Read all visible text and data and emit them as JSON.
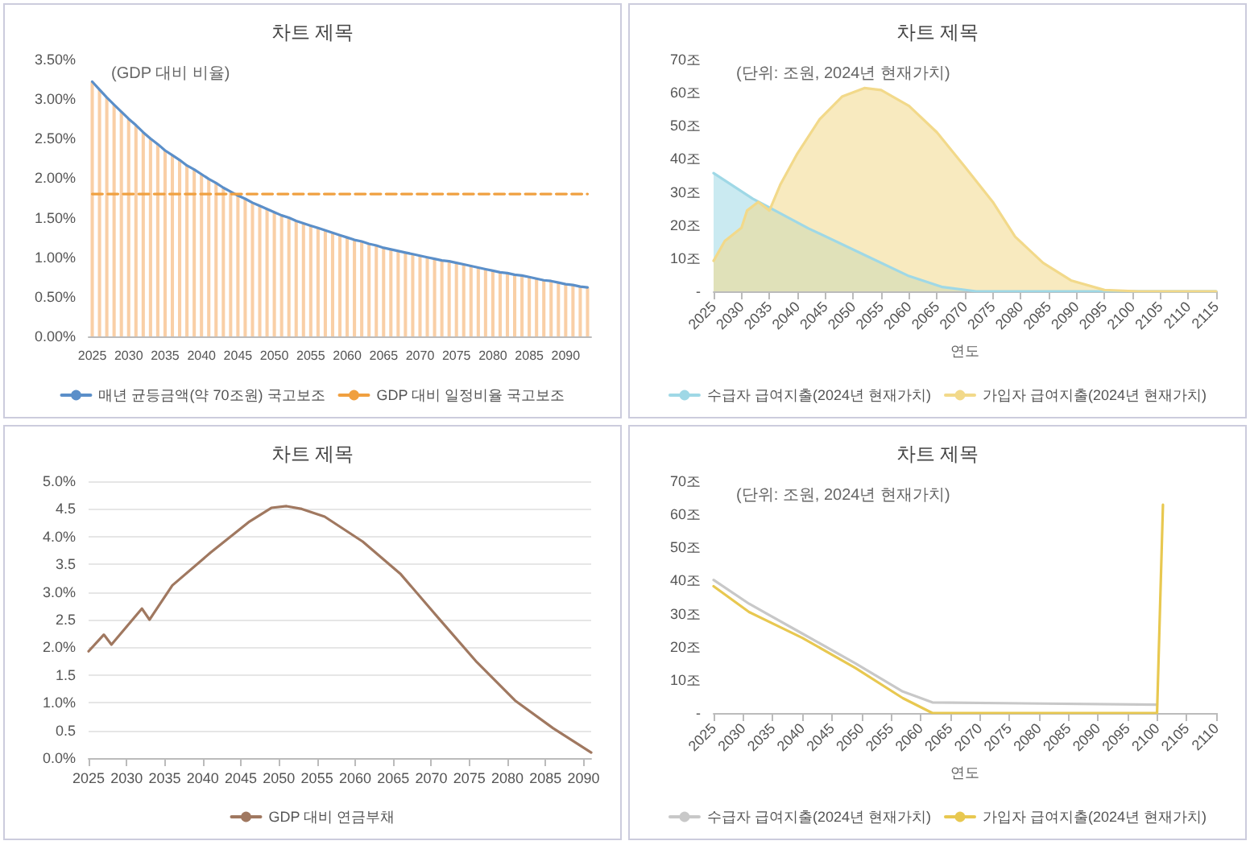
{
  "chart_data": [
    {
      "type": "bar",
      "title": "차트 제목",
      "annotations": [
        "(GDP 대비 비율)"
      ],
      "legend": "bottom",
      "categories": [
        "2025",
        null,
        null,
        null,
        null,
        "2030",
        null,
        null,
        null,
        null,
        "2035",
        null,
        null,
        null,
        null,
        "2040",
        null,
        null,
        null,
        null,
        "2045",
        null,
        null,
        null,
        null,
        "2050",
        null,
        null,
        null,
        null,
        "2055",
        null,
        null,
        null,
        null,
        "2060",
        null,
        null,
        null,
        null,
        "2065",
        null,
        null,
        null,
        null,
        "2070",
        null,
        null,
        null,
        null,
        "2075",
        null,
        null,
        null,
        null,
        "2080",
        null,
        null,
        null,
        null,
        "2085",
        null,
        null,
        null,
        null,
        "2090",
        null,
        null,
        null
      ],
      "ylim": [
        0,
        3.5
      ],
      "yticks": [
        {
          "value": 0,
          "label": "0.00%"
        },
        {
          "value": 0.5,
          "label": "0.50%"
        },
        {
          "value": 1,
          "label": "1.00%"
        },
        {
          "value": 1.5,
          "label": "1.50%"
        },
        {
          "value": 2,
          "label": "2.00%"
        },
        {
          "value": 2.5,
          "label": "2.50%"
        },
        {
          "value": 3,
          "label": "3.00%"
        },
        {
          "value": 3.5,
          "label": "3.50%"
        }
      ],
      "series": [
        {
          "color": "#f9cfa6",
          "values": [
            3.22,
            3.12,
            3.02,
            2.93,
            2.84,
            2.75,
            2.67,
            2.58,
            2.5,
            2.43,
            2.35,
            2.29,
            2.23,
            2.16,
            2.11,
            2.05,
            1.99,
            1.94,
            1.88,
            1.83,
            1.78,
            1.74,
            1.69,
            1.65,
            1.61,
            1.57,
            1.53,
            1.5,
            1.46,
            1.43,
            1.4,
            1.37,
            1.34,
            1.31,
            1.28,
            1.25,
            1.22,
            1.2,
            1.17,
            1.15,
            1.12,
            1.1,
            1.08,
            1.06,
            1.04,
            1.02,
            1.0,
            0.98,
            0.96,
            0.95,
            0.93,
            0.91,
            0.89,
            0.87,
            0.85,
            0.83,
            0.81,
            0.8,
            0.78,
            0.77,
            0.75,
            0.73,
            0.71,
            0.7,
            0.68,
            0.66,
            0.65,
            0.63,
            0.62
          ]
        },
        {
          "type": "line",
          "name": "매년 균등금액(약 70조원) 국고보조",
          "color": "#5b8fc9",
          "values": [
            3.22,
            3.12,
            3.02,
            2.93,
            2.84,
            2.75,
            2.67,
            2.58,
            2.5,
            2.43,
            2.35,
            2.29,
            2.23,
            2.16,
            2.11,
            2.05,
            1.99,
            1.94,
            1.88,
            1.83,
            1.78,
            1.74,
            1.69,
            1.65,
            1.61,
            1.57,
            1.53,
            1.5,
            1.46,
            1.43,
            1.4,
            1.37,
            1.34,
            1.31,
            1.28,
            1.25,
            1.22,
            1.2,
            1.17,
            1.15,
            1.12,
            1.1,
            1.08,
            1.06,
            1.04,
            1.02,
            1.0,
            0.98,
            0.96,
            0.95,
            0.93,
            0.91,
            0.89,
            0.87,
            0.85,
            0.83,
            0.81,
            0.8,
            0.78,
            0.77,
            0.75,
            0.73,
            0.71,
            0.7,
            0.68,
            0.66,
            0.65,
            0.63,
            0.62
          ]
        },
        {
          "type": "line",
          "name": "GDP 대비 일정비율 국고보조",
          "color": "#f0a040",
          "line_style": "dashed",
          "values": [
            1.8,
            1.8,
            1.8,
            1.8,
            1.8,
            1.8,
            1.8,
            1.8,
            1.8,
            1.8,
            1.8,
            1.8,
            1.8,
            1.8,
            1.8,
            1.8,
            1.8,
            1.8,
            1.8,
            1.8,
            1.8,
            1.8,
            1.8,
            1.8,
            1.8,
            1.8,
            1.8,
            1.8,
            1.8,
            1.8,
            1.8,
            1.8,
            1.8,
            1.8,
            1.8,
            1.8,
            1.8,
            1.8,
            1.8,
            1.8,
            1.8,
            1.8,
            1.8,
            1.8,
            1.8,
            1.8,
            1.8,
            1.8,
            1.8,
            1.8,
            1.8,
            1.8,
            1.8,
            1.8,
            1.8,
            1.8,
            1.8,
            1.8,
            1.8,
            1.8,
            1.8,
            1.8,
            1.8,
            1.8,
            1.8,
            1.8,
            1.8,
            1.8,
            1.8
          ]
        }
      ]
    },
    {
      "type": "area",
      "title": "차트 제목",
      "annotations": [
        "(단위: 조원, 2024년 현재가치)"
      ],
      "xlabel": "연도",
      "legend": "bottom",
      "xlim": [
        2025,
        2115
      ],
      "xticks": [
        2025,
        2030,
        2035,
        2040,
        2045,
        2050,
        2055,
        2060,
        2065,
        2070,
        2075,
        2080,
        2085,
        2090,
        2095,
        2100,
        2105,
        2110,
        2115
      ],
      "ylim": [
        0,
        70
      ],
      "yticks": [
        {
          "value": 0,
          "label": "-"
        },
        {
          "value": 10,
          "label": "10조"
        },
        {
          "value": 20,
          "label": "20조"
        },
        {
          "value": 30,
          "label": "30조"
        },
        {
          "value": 40,
          "label": "40조"
        },
        {
          "value": 50,
          "label": "50조"
        },
        {
          "value": 60,
          "label": "60조"
        },
        {
          "value": 70,
          "label": "70조"
        }
      ],
      "series": [
        {
          "name": "수급자 급여지출(2024년 현재가치)",
          "color": "#9fd8e6",
          "x": [
            2025,
            2032,
            2042,
            2052,
            2060,
            2066,
            2072,
            2115
          ],
          "values": [
            35.7,
            28,
            19,
            11,
            4.6,
            1.3,
            0,
            0
          ]
        },
        {
          "name": "가입자 급여지출(2024년 현재가치)",
          "color": "#f2d98a",
          "x": [
            2025,
            2027,
            2030,
            2031,
            2033,
            2035,
            2037,
            2040,
            2044,
            2048,
            2052,
            2055,
            2060,
            2065,
            2070,
            2075,
            2079,
            2084,
            2089,
            2095,
            2101,
            2115
          ],
          "values": [
            9.2,
            15.2,
            19.2,
            24.4,
            27,
            24.4,
            32.4,
            41.6,
            52,
            58.8,
            61.4,
            60.8,
            56,
            48,
            37.6,
            27,
            16.5,
            8.6,
            3.3,
            0.4,
            0,
            0
          ]
        }
      ]
    },
    {
      "type": "line",
      "title": "차트 제목",
      "legend": "bottom",
      "grid": "y",
      "xlim": [
        2025,
        2091
      ],
      "xticks": [
        2025,
        2030,
        2035,
        2040,
        2045,
        2050,
        2055,
        2060,
        2065,
        2070,
        2075,
        2080,
        2085,
        2090
      ],
      "ylim": [
        0,
        5
      ],
      "yticks": [
        {
          "value": 0,
          "label": "0.0%"
        },
        0.5,
        {
          "value": 1,
          "label": "1.0%"
        },
        1.5,
        {
          "value": 2,
          "label": "2.0%"
        },
        2.5,
        {
          "value": 3,
          "label": "3.0%"
        },
        3.5,
        {
          "value": 4,
          "label": "4.0%"
        },
        4.5,
        {
          "value": 5,
          "label": "5.0%"
        }
      ],
      "series": [
        {
          "name": "GDP 대비 연금부채",
          "color": "#a07860",
          "x": [
            2025,
            2027,
            2028,
            2032,
            2033,
            2036,
            2041,
            2046,
            2049,
            2051,
            2053,
            2056,
            2061,
            2066,
            2071,
            2076,
            2081,
            2086,
            2091
          ],
          "values": [
            1.93,
            2.23,
            2.05,
            2.7,
            2.5,
            3.12,
            3.71,
            4.26,
            4.52,
            4.55,
            4.5,
            4.36,
            3.91,
            3.32,
            2.52,
            1.73,
            1.04,
            0.54,
            0.1
          ]
        }
      ]
    },
    {
      "type": "line",
      "title": "차트 제목",
      "annotations": [
        "(단위: 조원, 2024년 현재가치)"
      ],
      "xlabel": "연도",
      "legend": "bottom",
      "xlim": [
        2025,
        2110
      ],
      "xticks": [
        2025,
        2030,
        2035,
        2040,
        2045,
        2050,
        2055,
        2060,
        2065,
        2070,
        2075,
        2080,
        2085,
        2090,
        2095,
        2100,
        2105,
        2110
      ],
      "ylim": [
        0,
        70
      ],
      "yticks": [
        {
          "value": 0,
          "label": "-"
        },
        {
          "value": 10,
          "label": "10조"
        },
        {
          "value": 20,
          "label": "20조"
        },
        {
          "value": 30,
          "label": "30조"
        },
        {
          "value": 40,
          "label": "40조"
        },
        {
          "value": 50,
          "label": "50조"
        },
        {
          "value": 60,
          "label": "60조"
        },
        {
          "value": 70,
          "label": "70조"
        }
      ],
      "series": [
        {
          "name": "수급자 급여지출(2024년 현재가치)",
          "color": "#c8c8c8",
          "x": [
            2025,
            2031,
            2040,
            2049,
            2057,
            2062,
            2100
          ],
          "values": [
            40.2,
            33,
            24,
            15,
            6.5,
            3.2,
            2.5
          ]
        },
        {
          "name": "가입자 급여지출(2024년 현재가치)",
          "color": "#e8c850",
          "x": [
            2025,
            2031,
            2040,
            2049,
            2057,
            2062,
            2100,
            2101
          ],
          "values": [
            38.3,
            30.5,
            22.7,
            13.6,
            4.5,
            0,
            0,
            62.9
          ]
        }
      ]
    }
  ]
}
